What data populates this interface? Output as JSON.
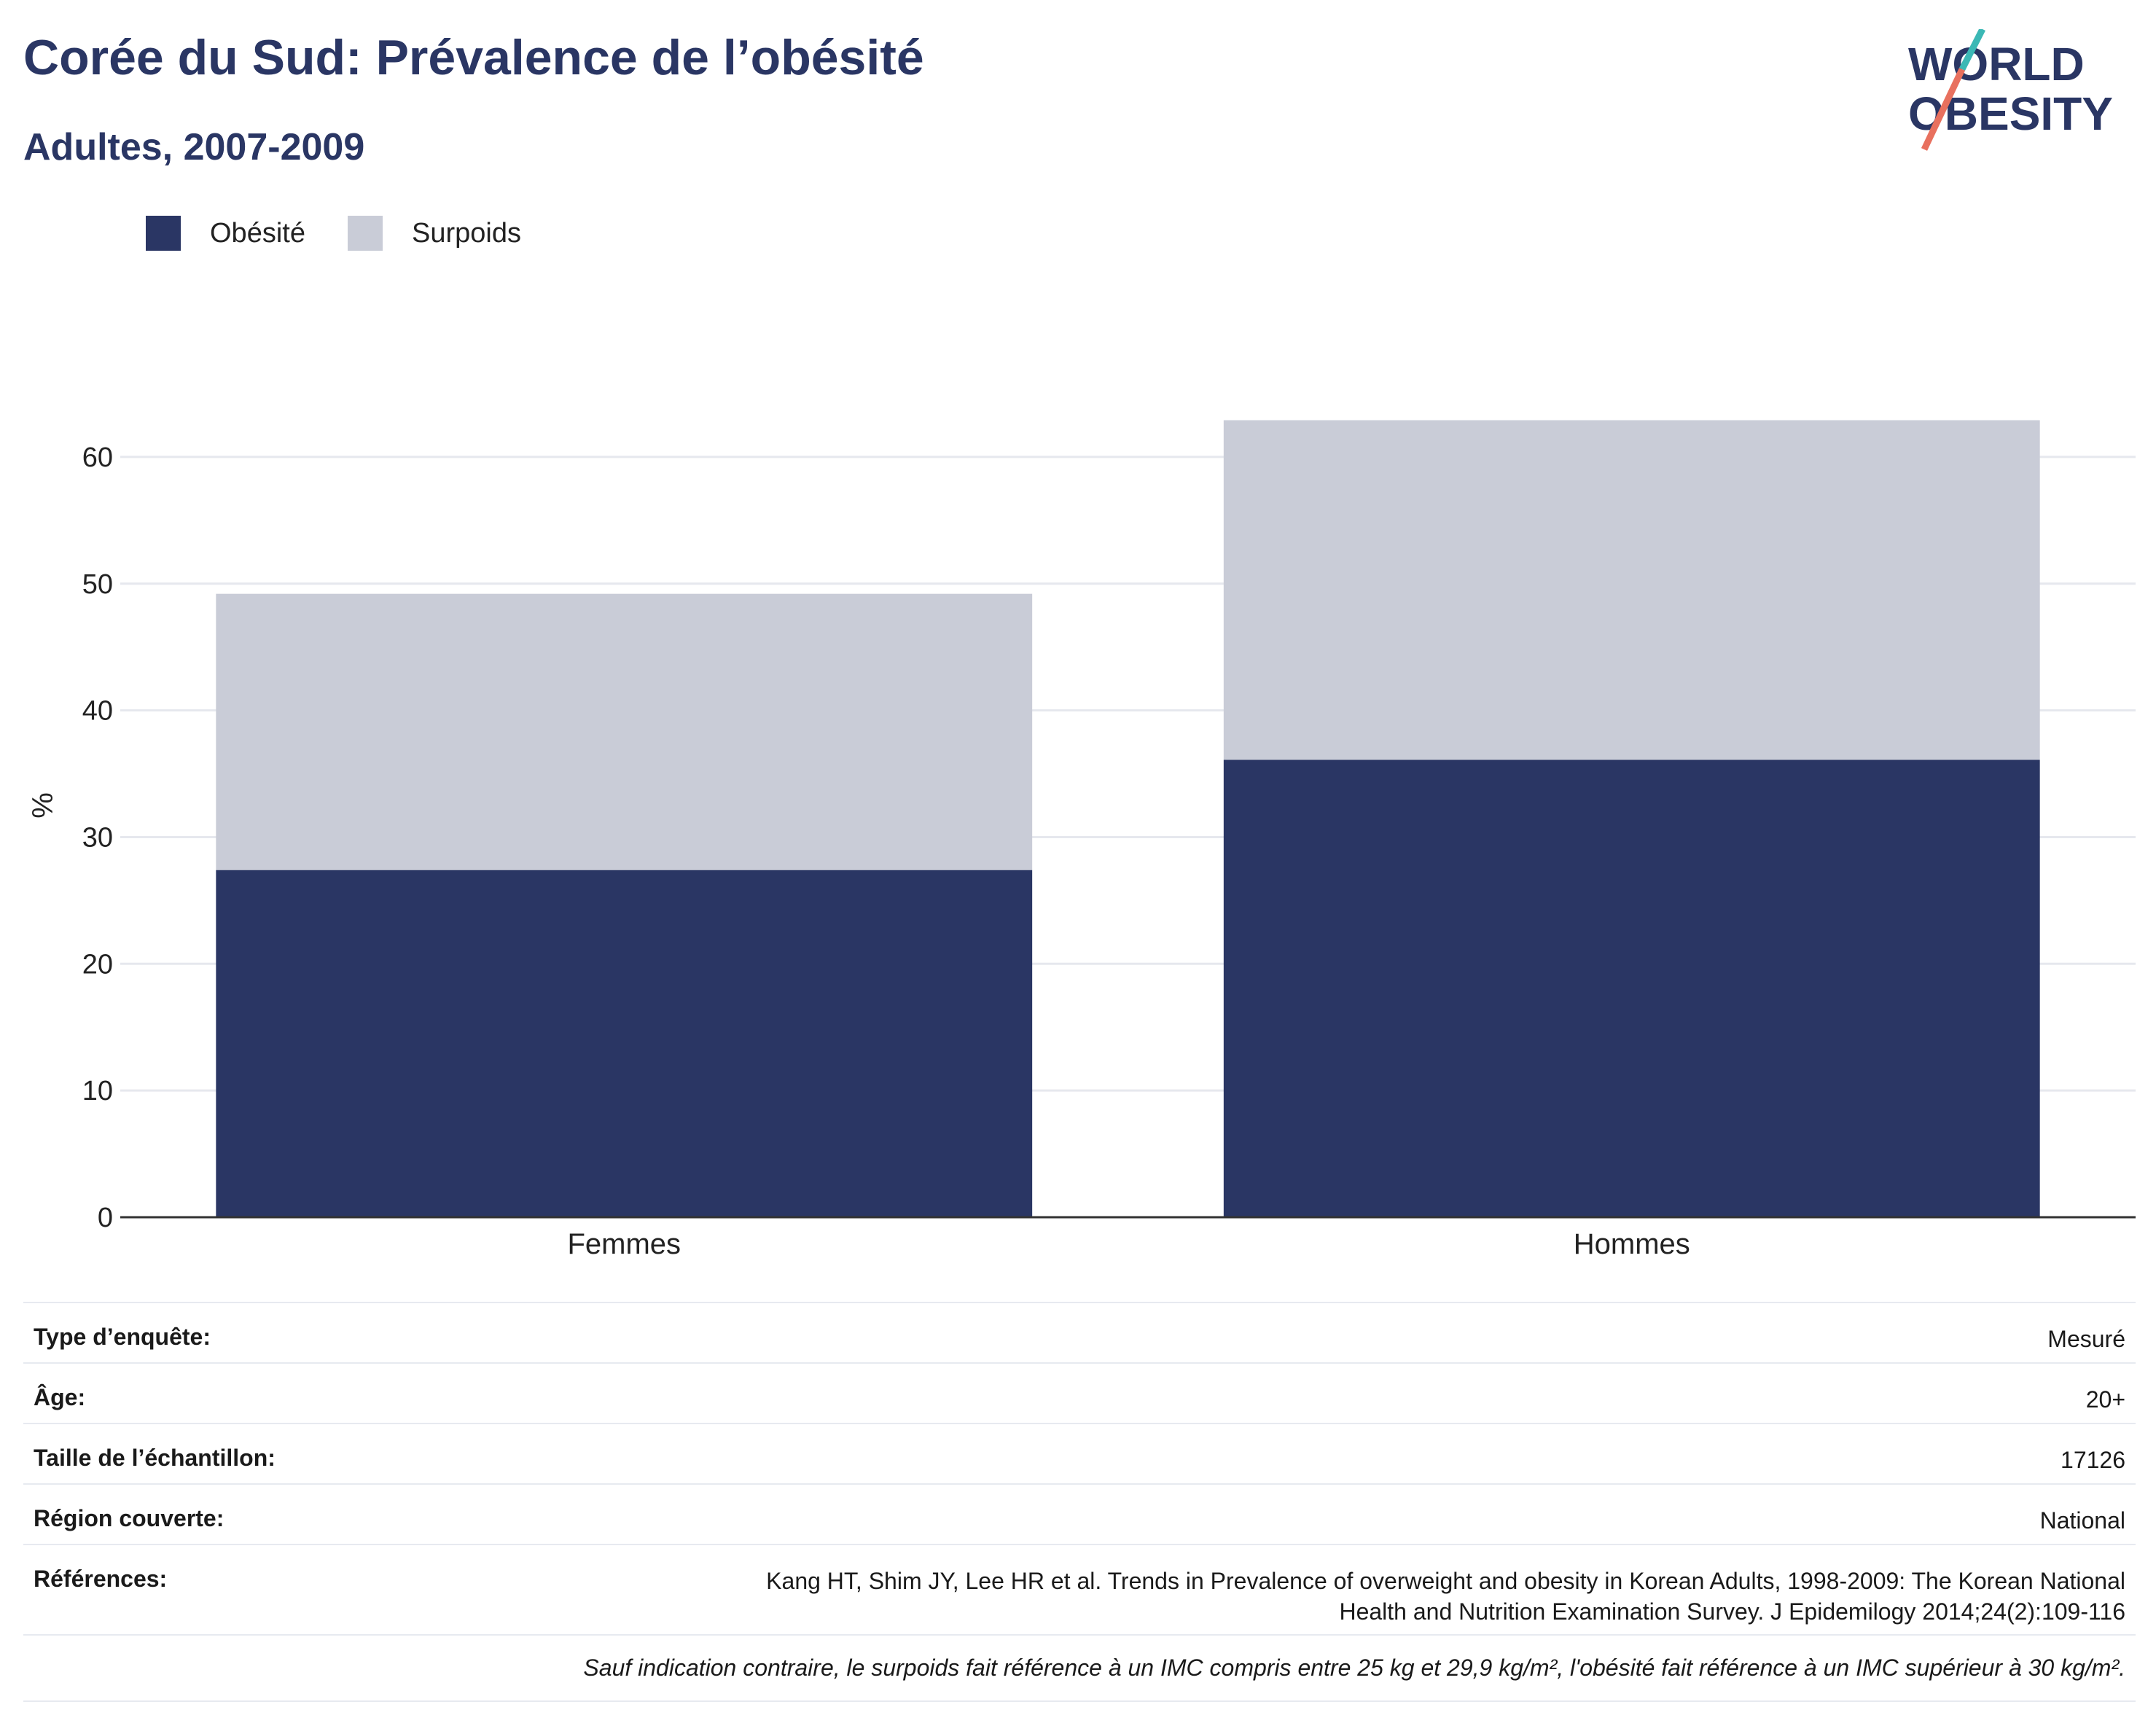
{
  "header": {
    "title": "Corée du Sud: Prévalence de l’obésité",
    "subtitle": "Adultes, 2007-2009"
  },
  "logo": {
    "line1": "WORLD",
    "line2": "OBESITY",
    "colors": {
      "text": "#2a3664",
      "slash_teal": "#3bb8b5",
      "slash_coral": "#e8705e"
    }
  },
  "colors": {
    "obesity": "#2a3664",
    "overweight": "#c9ccd7",
    "grid": "#e6e8ee",
    "axis": "#333333"
  },
  "chart_data": {
    "type": "bar",
    "stacked": true,
    "categories": [
      "Femmes",
      "Hommes"
    ],
    "series": [
      {
        "name": "Obésité",
        "values": [
          27.4,
          36.1
        ],
        "color": "#2a3664"
      },
      {
        "name": "Surpoids",
        "values": [
          21.8,
          26.8
        ],
        "color": "#c9ccd7"
      }
    ],
    "ylabel": "%",
    "yticks": [
      0,
      10,
      20,
      30,
      40,
      50,
      60
    ],
    "ylim": [
      0,
      65
    ],
    "grid": true,
    "legend_position": "top-left"
  },
  "details": [
    {
      "key": "Type d’enquête:",
      "value": "Mesuré"
    },
    {
      "key": "Âge:",
      "value": "20+"
    },
    {
      "key": "Taille de l’échantillon:",
      "value": "17126"
    },
    {
      "key": "Région couverte:",
      "value": "National"
    },
    {
      "key": "Références:",
      "value": "Kang HT, Shim JY, Lee HR et al. Trends in Prevalence of overweight and obesity in Korean Adults, 1998-2009: The Korean National Health and Nutrition Examination Survey. J Epidemilogy 2014;24(2):109-116"
    }
  ],
  "footnote": "Sauf indication contraire, le surpoids fait référence à un IMC compris entre 25 kg et 29,9 kg/m², l'obésité fait référence à un IMC supérieur à 30 kg/m²."
}
